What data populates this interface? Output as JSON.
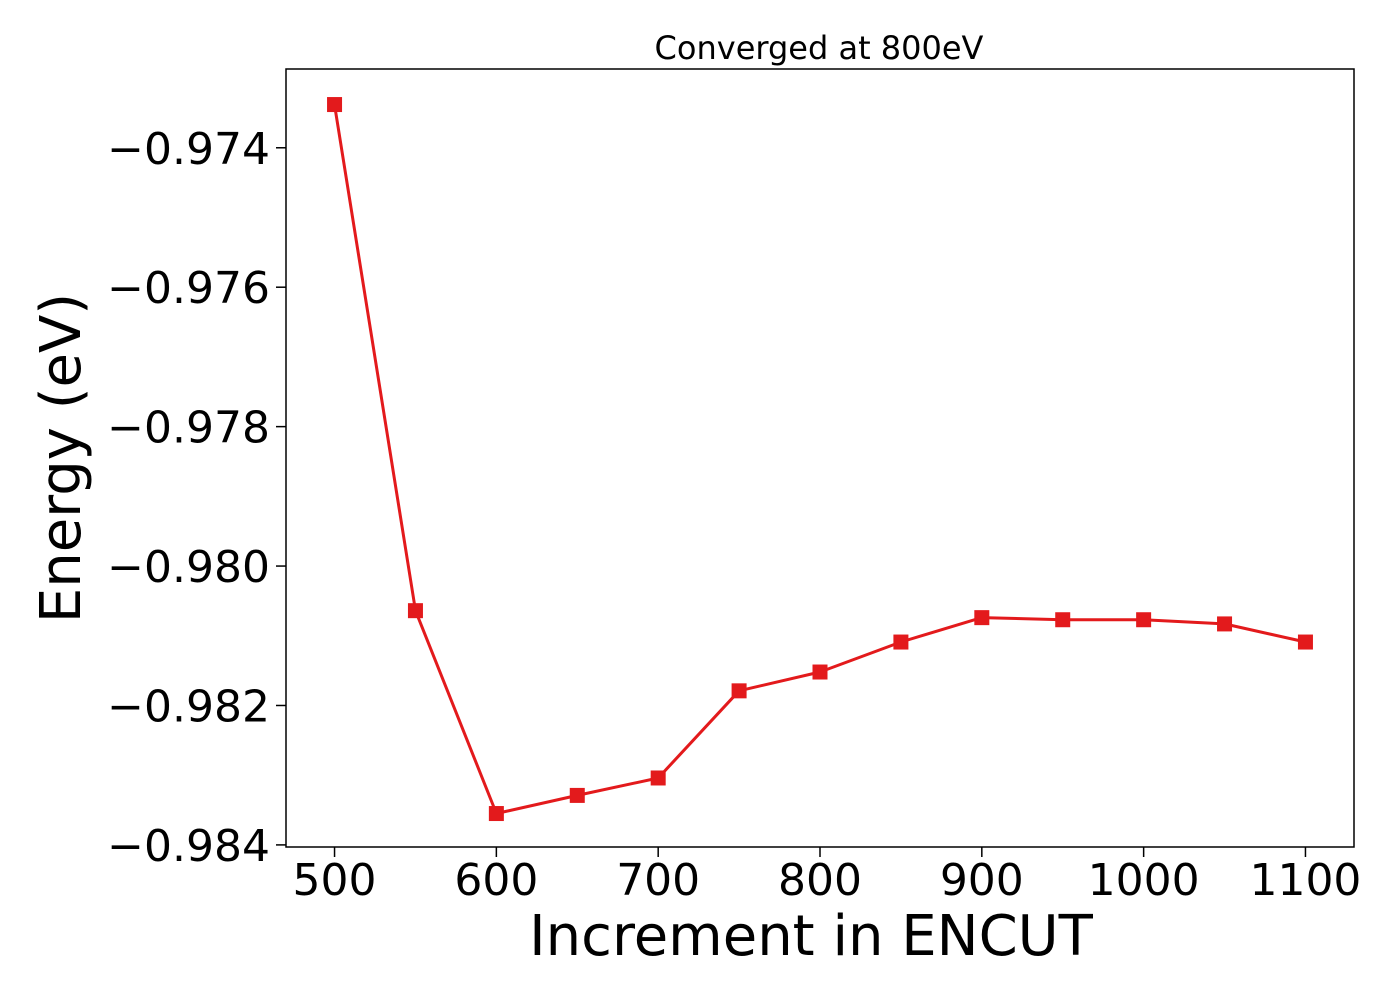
{
  "chart_data": {
    "type": "line",
    "title": "Converged at 800eV",
    "xlabel": "Increment in ENCUT",
    "ylabel": "Energy (eV)",
    "x": [
      500,
      550,
      600,
      650,
      700,
      750,
      800,
      850,
      900,
      950,
      1000,
      1050,
      1100
    ],
    "series": [
      {
        "values": [
          -0.97338,
          -0.98064,
          -0.98355,
          -0.98329,
          -0.98304,
          -0.98179,
          -0.98152,
          -0.98109,
          -0.98074,
          -0.98077,
          -0.98077,
          -0.98083,
          -0.98109
        ]
      }
    ],
    "xlim": [
      470,
      1130
    ],
    "ylim": [
      -0.98403,
      -0.97287
    ],
    "xticks": [
      500,
      600,
      700,
      800,
      900,
      1000,
      1100
    ],
    "xtick_labels": [
      "500",
      "600",
      "700",
      "800",
      "900",
      "1000",
      "1100"
    ],
    "yticks": [
      -0.984,
      -0.982,
      -0.98,
      -0.978,
      -0.976,
      -0.974
    ],
    "ytick_labels": [
      "−0.984",
      "−0.982",
      "−0.980",
      "−0.978",
      "−0.976",
      "−0.974"
    ],
    "marker": "square",
    "line_color": "#e31a1c",
    "grid": false,
    "legend": "none"
  }
}
